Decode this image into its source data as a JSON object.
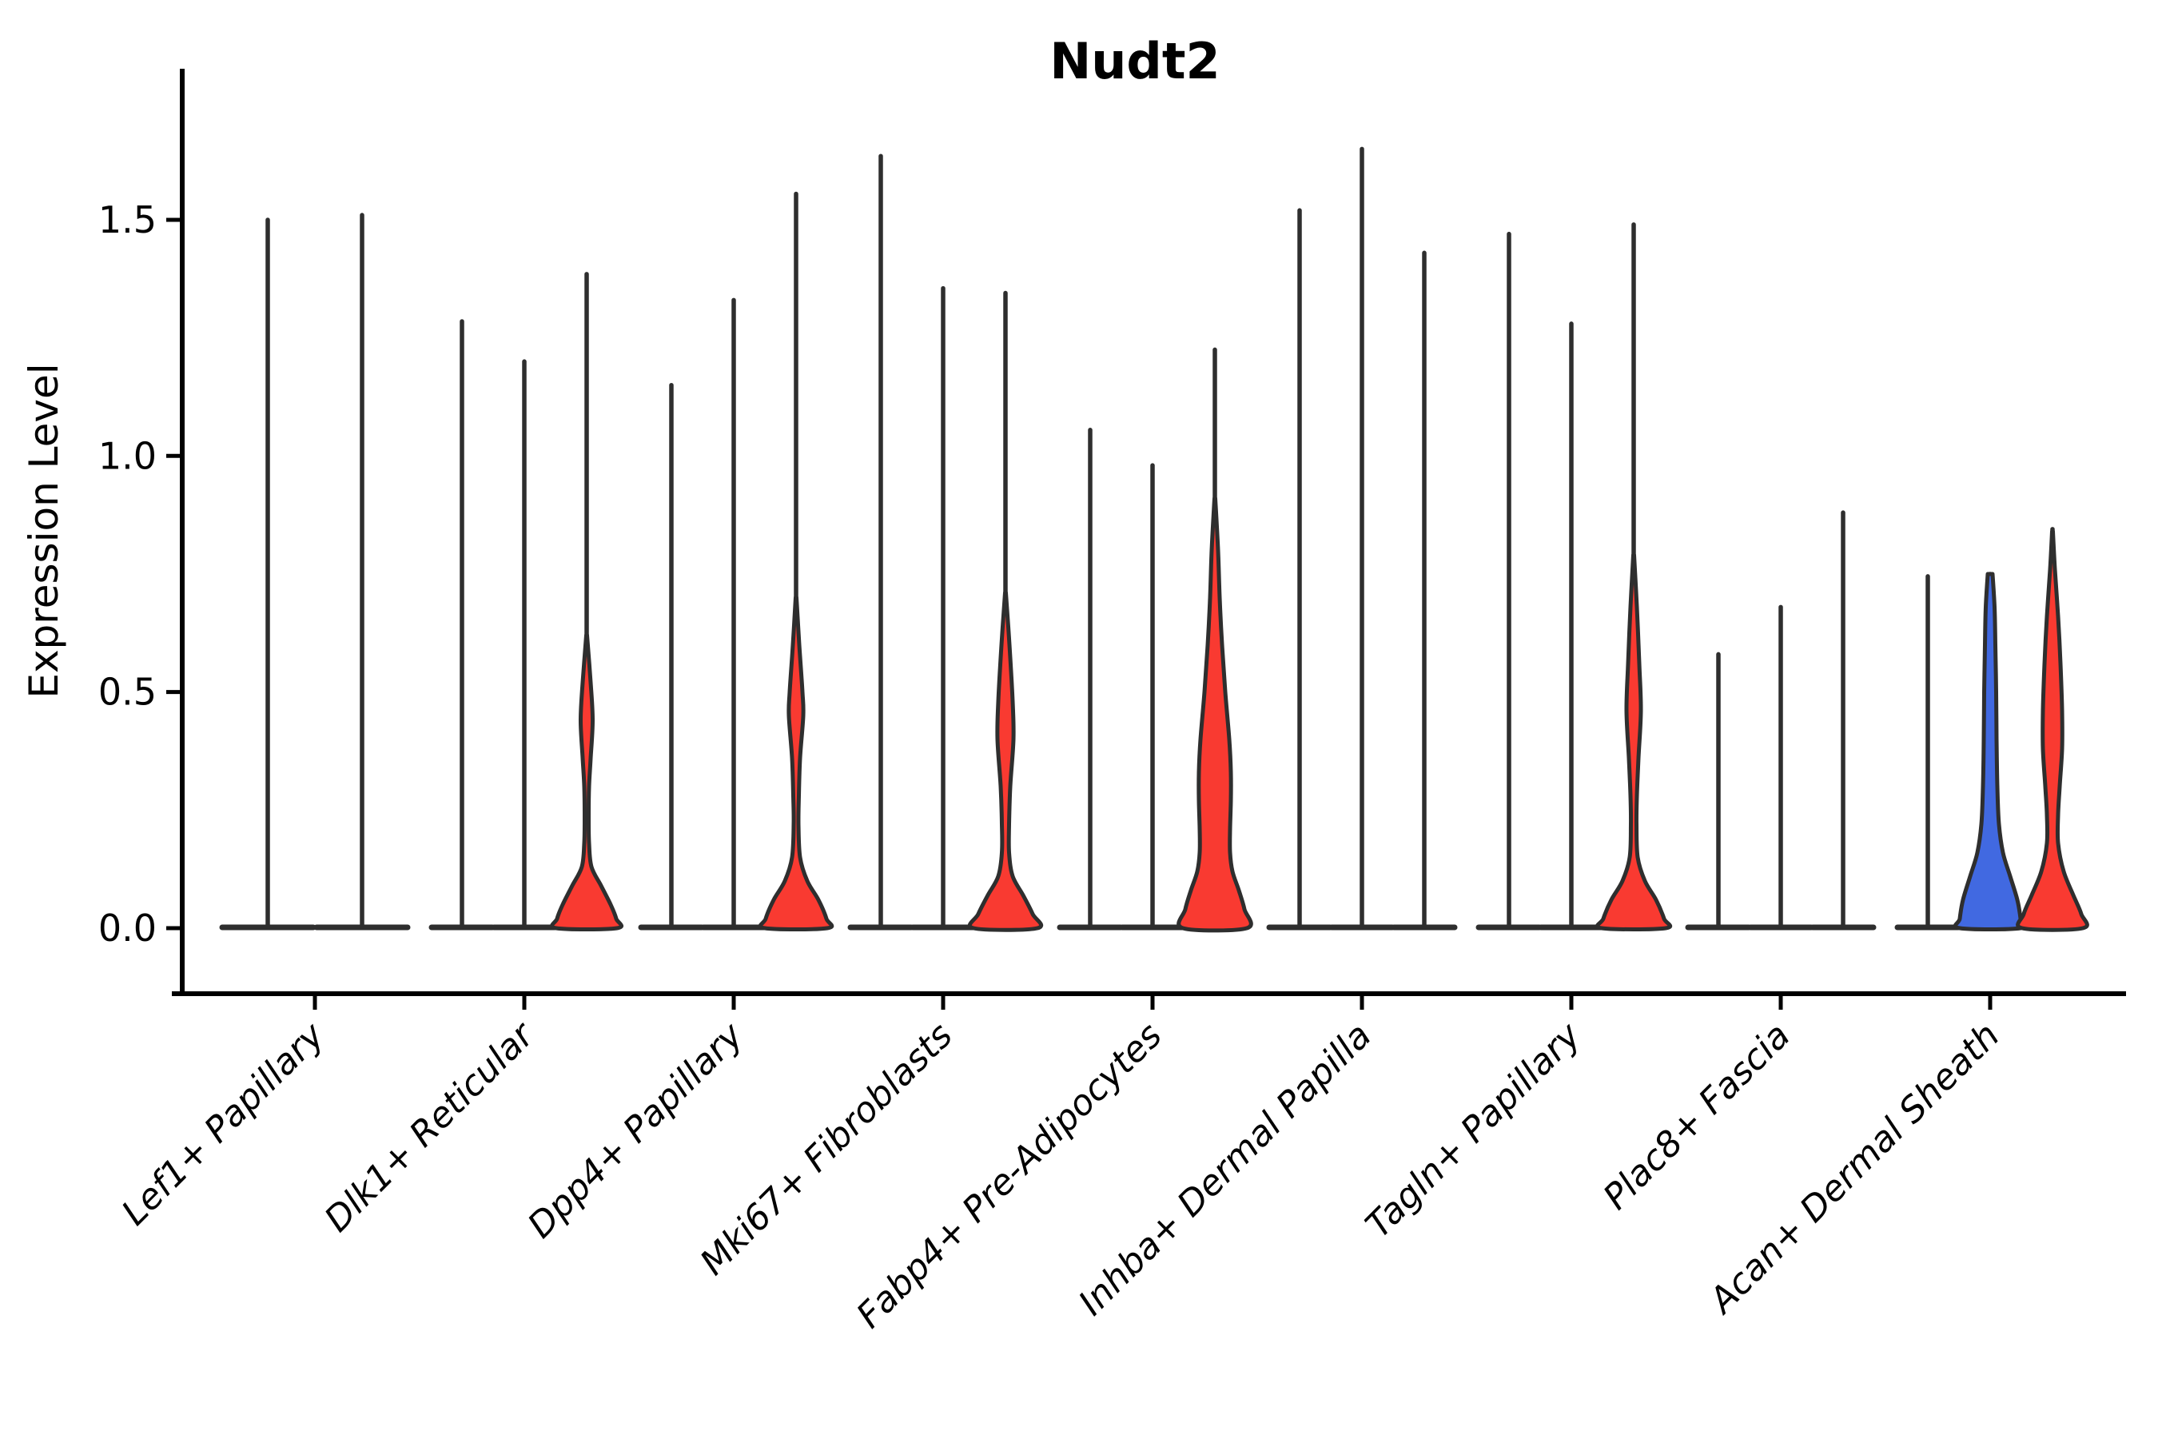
{
  "title": "Nudt2",
  "ylabel": "Expression Level",
  "colors": {
    "red": "#f93a31",
    "blue": "#4169e1",
    "outline": "#2e2e2e",
    "text": "#000000",
    "background": "#ffffff"
  },
  "chart_data": {
    "type": "violin",
    "title": "Nudt2",
    "xlabel": "",
    "ylabel": "Expression Level",
    "ylim": [
      -0.14,
      1.82
    ],
    "yticks": [
      {
        "value": 0.0,
        "label": "0.0"
      },
      {
        "value": 0.5,
        "label": "0.5"
      },
      {
        "value": 1.0,
        "label": "1.0"
      },
      {
        "value": 1.5,
        "label": "1.5"
      }
    ],
    "grid": false,
    "legend": "none",
    "categories": [
      "Lef1+ Papillary",
      "Dlk1+ Reticular",
      "Dpp4+ Papillary",
      "Mki67+ Fibroblasts",
      "Fabp4+ Pre-Adipocytes",
      "Inhba+ Dermal Papilla",
      "Tagln+ Papillary",
      "Plac8+ Fascia",
      "Acan+ Dermal Sheath"
    ],
    "groups": [
      {
        "label": "Lef1+ Papillary",
        "violins": [
          {
            "max": 1.5,
            "fill": "none",
            "profile": null
          },
          {
            "max": 1.51,
            "fill": "none",
            "profile": null
          }
        ]
      },
      {
        "label": "Dlk1+ Reticular",
        "violins": [
          {
            "max": 1.285,
            "fill": "none",
            "profile": null
          },
          {
            "max": 1.2,
            "fill": "none",
            "profile": null
          },
          {
            "max": 1.385,
            "fill": "red",
            "profile": [
              [
                0.62,
                0.5
              ],
              [
                0.52,
                5
              ],
              [
                0.44,
                7.5
              ],
              [
                0.36,
                5
              ],
              [
                0.3,
                3
              ],
              [
                0.24,
                2.5
              ],
              [
                0.18,
                3
              ],
              [
                0.13,
                6
              ],
              [
                0.09,
                18
              ],
              [
                0.05,
                30
              ],
              [
                0.02,
                37
              ],
              [
                0.0,
                38
              ]
            ]
          }
        ]
      },
      {
        "label": "Dpp4+ Papillary",
        "violins": [
          {
            "max": 1.15,
            "fill": "none",
            "profile": null
          },
          {
            "max": 1.33,
            "fill": "none",
            "profile": null
          },
          {
            "max": 1.555,
            "fill": "red",
            "profile": [
              [
                0.7,
                0.5
              ],
              [
                0.6,
                4
              ],
              [
                0.5,
                8
              ],
              [
                0.45,
                9
              ],
              [
                0.36,
                5
              ],
              [
                0.28,
                3.5
              ],
              [
                0.22,
                3
              ],
              [
                0.15,
                5
              ],
              [
                0.1,
                14
              ],
              [
                0.06,
                28
              ],
              [
                0.02,
                38
              ],
              [
                0.0,
                39
              ]
            ]
          }
        ]
      },
      {
        "label": "Mki67+ Fibroblasts",
        "violins": [
          {
            "max": 1.635,
            "fill": "none",
            "profile": null
          },
          {
            "max": 1.355,
            "fill": "none",
            "profile": null
          },
          {
            "max": 1.345,
            "fill": "red",
            "profile": [
              [
                0.71,
                0.5
              ],
              [
                0.6,
                5
              ],
              [
                0.48,
                9
              ],
              [
                0.4,
                10
              ],
              [
                0.3,
                6
              ],
              [
                0.22,
                4.5
              ],
              [
                0.16,
                4.5
              ],
              [
                0.11,
                9
              ],
              [
                0.07,
                22
              ],
              [
                0.03,
                34
              ],
              [
                0.0,
                40
              ]
            ]
          }
        ]
      },
      {
        "label": "Fabp4+ Pre-Adipocytes",
        "violins": [
          {
            "max": 1.055,
            "fill": "none",
            "profile": null
          },
          {
            "max": 0.98,
            "fill": "none",
            "profile": null
          },
          {
            "max": 1.225,
            "fill": "red",
            "profile": [
              [
                0.91,
                0.5
              ],
              [
                0.8,
                4
              ],
              [
                0.7,
                6
              ],
              [
                0.6,
                9
              ],
              [
                0.5,
                13
              ],
              [
                0.4,
                18
              ],
              [
                0.33,
                20
              ],
              [
                0.27,
                20
              ],
              [
                0.21,
                19
              ],
              [
                0.16,
                19
              ],
              [
                0.12,
                22
              ],
              [
                0.08,
                30
              ],
              [
                0.04,
                37
              ],
              [
                0.0,
                40
              ]
            ]
          }
        ]
      },
      {
        "label": "Inhba+ Dermal Papilla",
        "violins": [
          {
            "max": 1.52,
            "fill": "none",
            "profile": null
          },
          {
            "max": 1.65,
            "fill": "none",
            "profile": null
          },
          {
            "max": 1.43,
            "fill": "none",
            "profile": null
          }
        ]
      },
      {
        "label": "Tagln+ Papillary",
        "violins": [
          {
            "max": 1.47,
            "fill": "none",
            "profile": null
          },
          {
            "max": 1.28,
            "fill": "none",
            "profile": null
          },
          {
            "max": 1.49,
            "fill": "red",
            "profile": [
              [
                0.79,
                0.5
              ],
              [
                0.68,
                4
              ],
              [
                0.56,
                7
              ],
              [
                0.46,
                9
              ],
              [
                0.36,
                6
              ],
              [
                0.28,
                4
              ],
              [
                0.22,
                3.5
              ],
              [
                0.15,
                5
              ],
              [
                0.1,
                14
              ],
              [
                0.06,
                28
              ],
              [
                0.02,
                38
              ],
              [
                0.0,
                40
              ]
            ]
          }
        ]
      },
      {
        "label": "Plac8+ Fascia",
        "violins": [
          {
            "max": 0.58,
            "fill": "none",
            "profile": null
          },
          {
            "max": 0.68,
            "fill": "none",
            "profile": null
          },
          {
            "max": 0.88,
            "fill": "none",
            "profile": null
          }
        ]
      },
      {
        "label": "Acan+ Dermal Sheath",
        "violins": [
          {
            "max": 0.745,
            "fill": "none",
            "profile": null
          },
          {
            "max": 0.75,
            "fill": "blue",
            "profile": [
              [
                0.75,
                3
              ],
              [
                0.68,
                5.5
              ],
              [
                0.6,
                6.5
              ],
              [
                0.5,
                7.5
              ],
              [
                0.4,
                8
              ],
              [
                0.3,
                9
              ],
              [
                0.22,
                11
              ],
              [
                0.16,
                16
              ],
              [
                0.11,
                25
              ],
              [
                0.06,
                34
              ],
              [
                0.02,
                38
              ],
              [
                0.0,
                38
              ]
            ]
          },
          {
            "max": 0.845,
            "fill": "red",
            "profile": [
              [
                0.84,
                0.5
              ],
              [
                0.76,
                3
              ],
              [
                0.66,
                7
              ],
              [
                0.56,
                10
              ],
              [
                0.46,
                12
              ],
              [
                0.38,
                12
              ],
              [
                0.3,
                9
              ],
              [
                0.24,
                7
              ],
              [
                0.18,
                7
              ],
              [
                0.12,
                14
              ],
              [
                0.07,
                26
              ],
              [
                0.03,
                36
              ],
              [
                0.0,
                38
              ]
            ]
          }
        ]
      }
    ]
  }
}
